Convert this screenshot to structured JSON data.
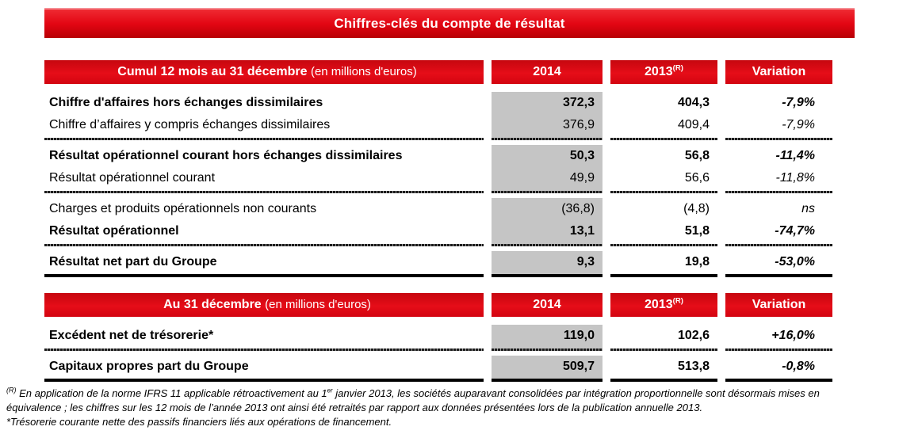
{
  "title": "Chiffres-clés du compte de résultat",
  "columns": {
    "y2014": "2014",
    "y2013_base": "2013",
    "y2013_sup": "(R)",
    "variation": "Variation"
  },
  "tables": [
    {
      "caption_bold": "Cumul 12 mois au 31 décembre",
      "caption_unit": "(en millions d'euros)",
      "groups": [
        {
          "rows": [
            {
              "label": "Chiffre d'affaires hors échanges dissimilaires",
              "v2014": "372,3",
              "v2013": "404,3",
              "variation": "-7,9%"
            },
            {
              "label": "Chiffre d’affaires y compris échanges dissimilaires",
              "v2014": "376,9",
              "v2013": "409,4",
              "variation": "-7,9%"
            }
          ]
        },
        {
          "rows": [
            {
              "label": "Résultat opérationnel courant hors échanges dissimilaires",
              "v2014": "50,3",
              "v2013": "56,8",
              "variation": "-11,4%"
            },
            {
              "label": "Résultat opérationnel courant",
              "v2014": "49,9",
              "v2013": "56,6",
              "variation": "-11,8%"
            }
          ]
        },
        {
          "rows": [
            {
              "label": "Charges et produits opérationnels non courants",
              "v2014": "(36,8)",
              "v2013": "(4,8)",
              "variation": "ns"
            },
            {
              "label": "Résultat opérationnel",
              "v2014": "13,1",
              "v2013": "51,8",
              "variation": "-74,7%"
            }
          ]
        },
        {
          "rows": [
            {
              "label": "Résultat net part du Groupe",
              "v2014": "9,3",
              "v2013": "19,8",
              "variation": "-53,0%"
            }
          ]
        }
      ]
    },
    {
      "caption_bold": "Au 31 décembre",
      "caption_unit": "(en millions d'euros)",
      "groups": [
        {
          "rows": [
            {
              "label": "Excédent net de trésorerie*",
              "v2014": "119,0",
              "v2013": "102,6",
              "variation": "+16,0%"
            }
          ]
        },
        {
          "rows": [
            {
              "label": "Capitaux propres part du Groupe",
              "v2014": "509,7",
              "v2013": "513,8",
              "variation": "-0,8%"
            }
          ]
        }
      ]
    }
  ],
  "footnotes": {
    "ref_mark": "(R)",
    "note1_part1": " En application de la norme IFRS 11 applicable rétroactivement au 1",
    "note1_sup": "er",
    "note1_part2": " janvier 2013, les sociétés auparavant consolidées par intégration proportionnelle sont désormais mises en équivalence ; les chiffres sur les 12 mois de l’année 2013 ont ainsi été retraités par rapport aux données présentées lors de la publication annuelle 2013.",
    "note2": "*Trésorerie courante nette des passifs financiers liés aux opérations de financement."
  }
}
